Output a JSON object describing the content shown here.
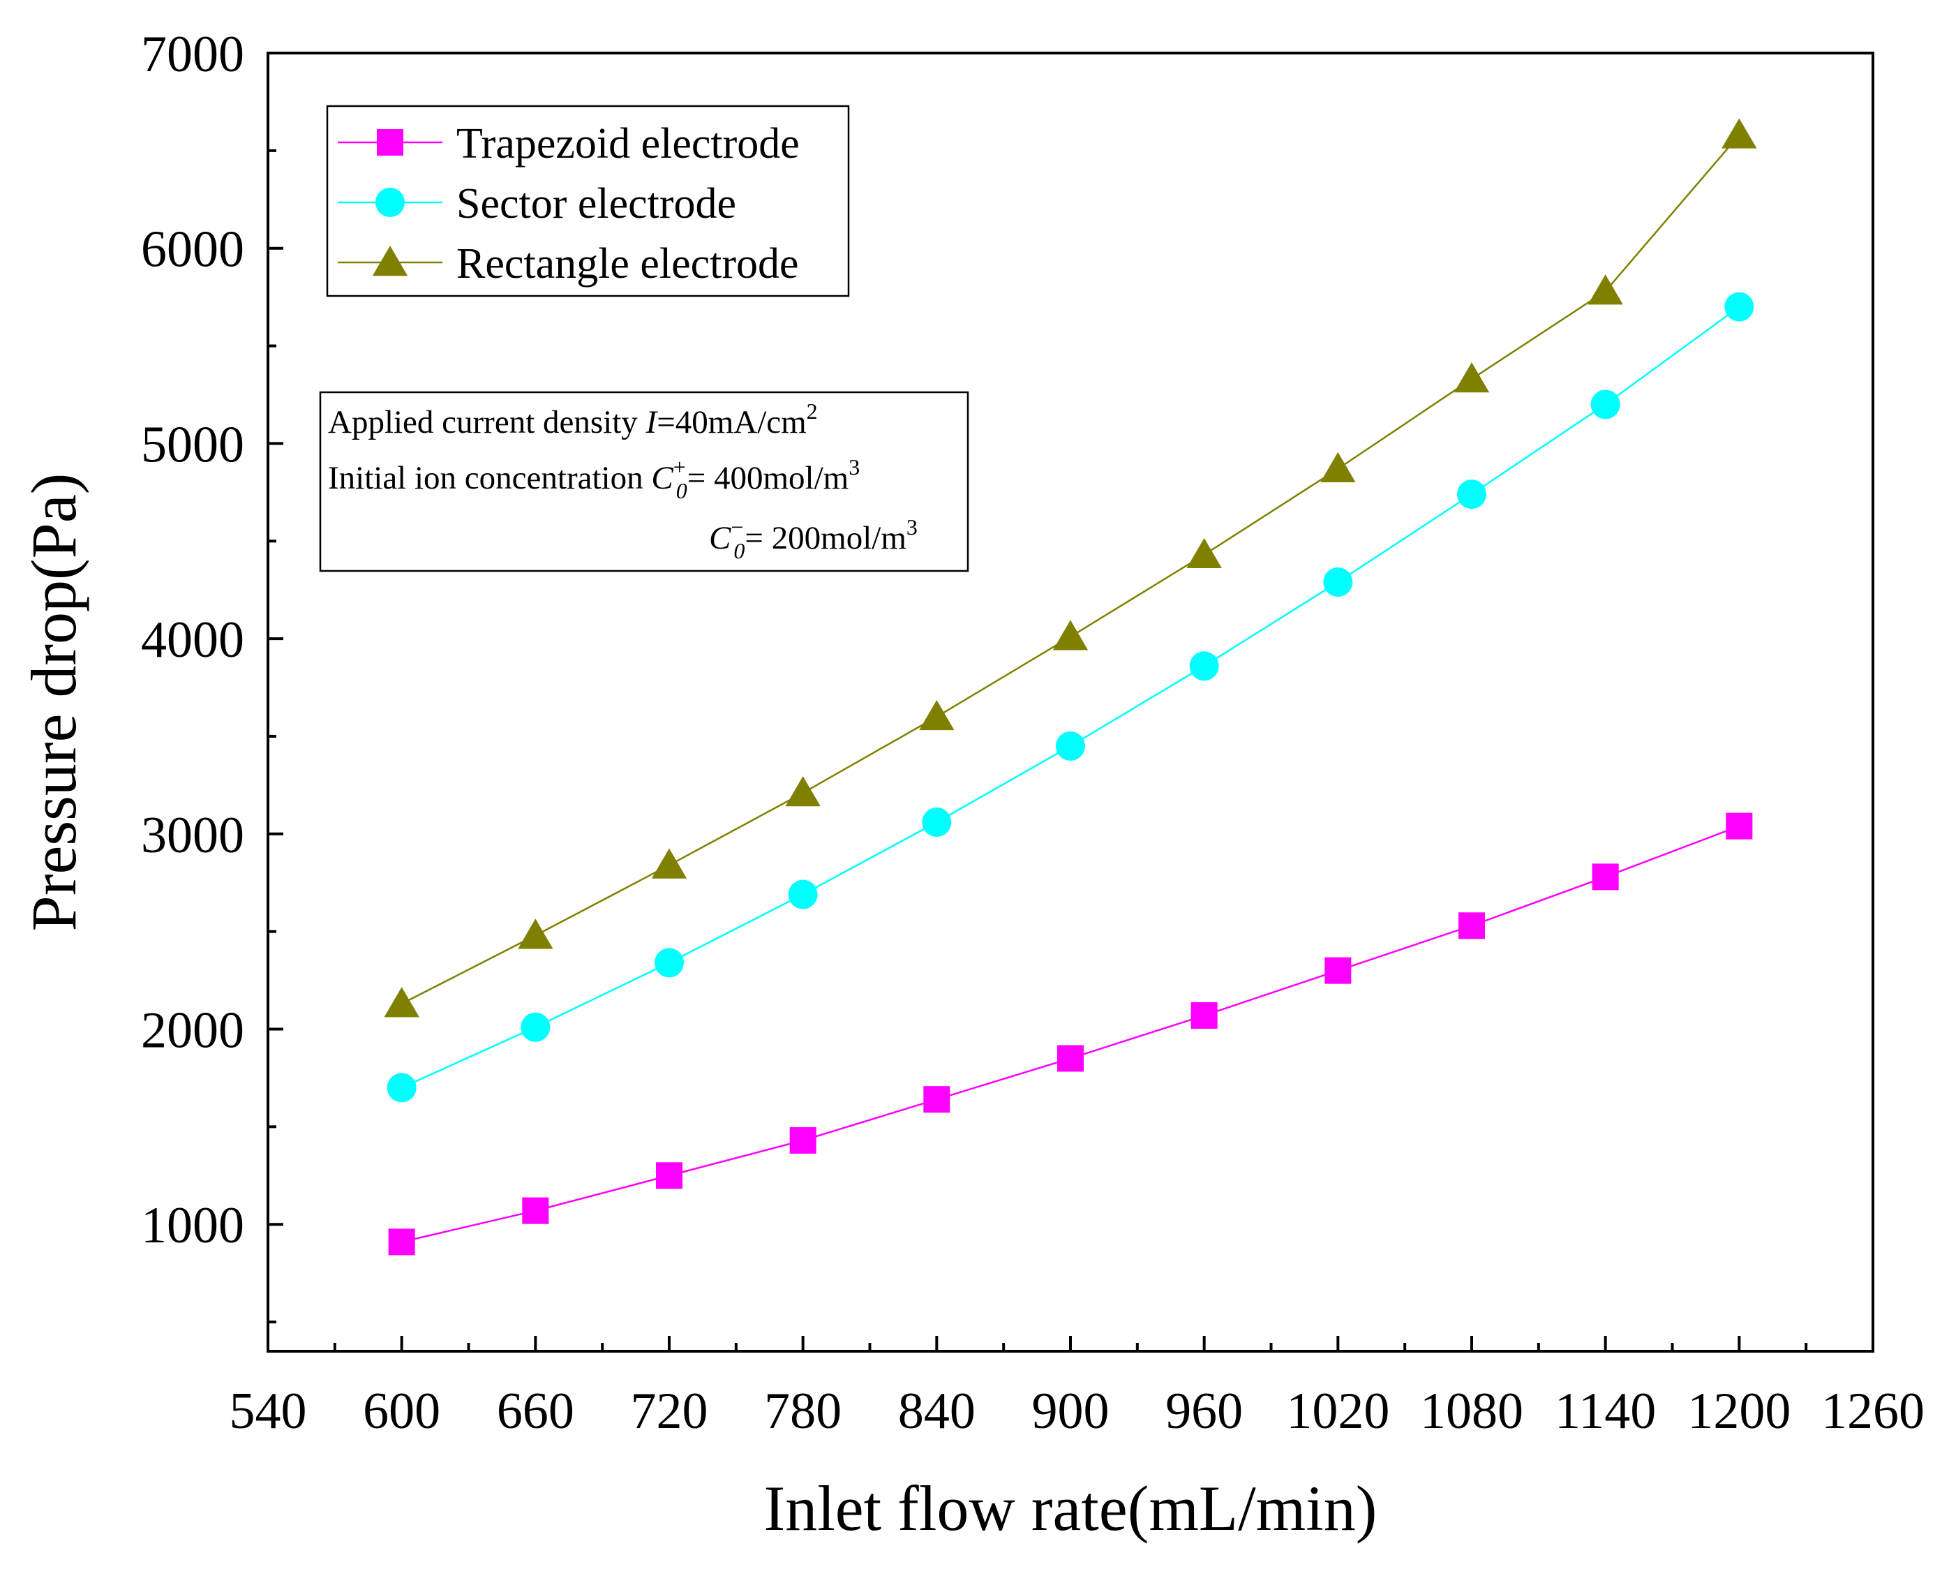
{
  "chart_data": {
    "type": "line",
    "title": "",
    "xlabel": "Inlet flow rate(mL/min)",
    "ylabel": "Pressure drop(Pa)",
    "xlim": [
      540,
      1260
    ],
    "ylim": [
      350,
      7000
    ],
    "x_ticks": [
      540,
      600,
      660,
      720,
      780,
      840,
      900,
      960,
      1020,
      1080,
      1140,
      1200,
      1260
    ],
    "y_ticks": [
      1000,
      2000,
      3000,
      4000,
      5000,
      6000,
      7000
    ],
    "x": [
      600,
      660,
      720,
      780,
      840,
      900,
      960,
      1020,
      1080,
      1140,
      1200
    ],
    "series": [
      {
        "name": "Trapezoid electrode",
        "marker": "square",
        "color": "#ff00ff",
        "values": [
          910,
          1070,
          1250,
          1430,
          1640,
          1850,
          2070,
          2300,
          2530,
          2780,
          3040
        ]
      },
      {
        "name": "Sector electrode",
        "marker": "circle",
        "color": "#00ffff",
        "values": [
          1700,
          2010,
          2340,
          2690,
          3060,
          3450,
          3860,
          4290,
          4740,
          5200,
          5700
        ]
      },
      {
        "name": "Rectangle electrode",
        "marker": "triangle",
        "color": "#808000",
        "values": [
          2130,
          2480,
          2840,
          3210,
          3600,
          4010,
          4430,
          4870,
          5330,
          5780,
          6580
        ]
      }
    ],
    "legend_position": "top-left",
    "annotation": {
      "line1": {
        "prefix": "Applied current density ",
        "symbol": "I",
        "value": "=40mA/cm",
        "sup": "2"
      },
      "line2": {
        "prefix": "Initial ion concentration ",
        "symbol": "C",
        "sup": "+",
        "sub": "0",
        "value": "= 400mol/m",
        "unit_sup": "3"
      },
      "line3": {
        "symbol": "C",
        "sup": "−",
        "sub": "0",
        "value": "= 200mol/m",
        "unit_sup": "3"
      }
    }
  }
}
